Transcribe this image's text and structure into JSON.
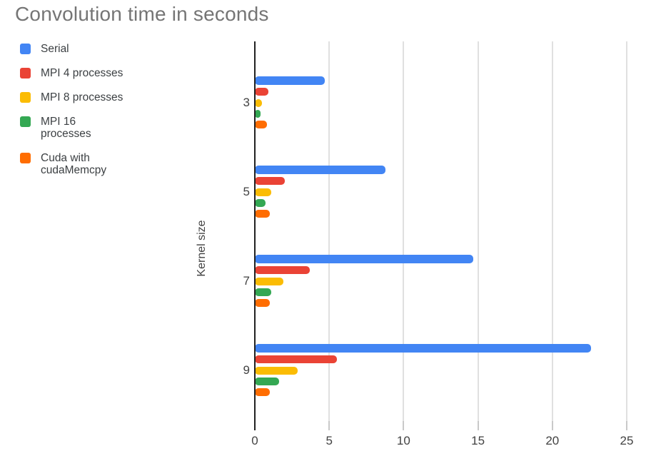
{
  "chart_data": {
    "type": "bar",
    "orientation": "horizontal",
    "title": "Convolution time in seconds",
    "xlabel": "",
    "ylabel": "Kernel size",
    "categories": [
      "3",
      "5",
      "7",
      "9"
    ],
    "series": [
      {
        "name": "Serial",
        "color": "#4285f4",
        "values": [
          4.7,
          8.8,
          14.7,
          22.6
        ]
      },
      {
        "name": "MPI 4 processes",
        "color": "#ea4335",
        "values": [
          0.9,
          2.0,
          3.7,
          5.5
        ]
      },
      {
        "name": "MPI 8 processes",
        "color": "#fbbc04",
        "values": [
          0.5,
          1.1,
          1.9,
          2.9
        ]
      },
      {
        "name": "MPI 16 processes",
        "color": "#34a853",
        "values": [
          0.4,
          0.7,
          1.1,
          1.65
        ]
      },
      {
        "name": "Cuda with cudaMemcpy",
        "color": "#ff6d01",
        "values": [
          0.8,
          1.0,
          1.0,
          1.0
        ]
      }
    ],
    "xlim": [
      0,
      25
    ],
    "xticks": [
      0,
      5,
      10,
      15,
      20,
      25
    ],
    "grid": true,
    "legend_position": "top-left",
    "colors": {
      "title_text": "#757575",
      "axis_text": "#424242",
      "legend_text": "#3c4043",
      "gridline": "#e0e0e0",
      "axis_line": "#212121",
      "background": "#ffffff"
    }
  }
}
